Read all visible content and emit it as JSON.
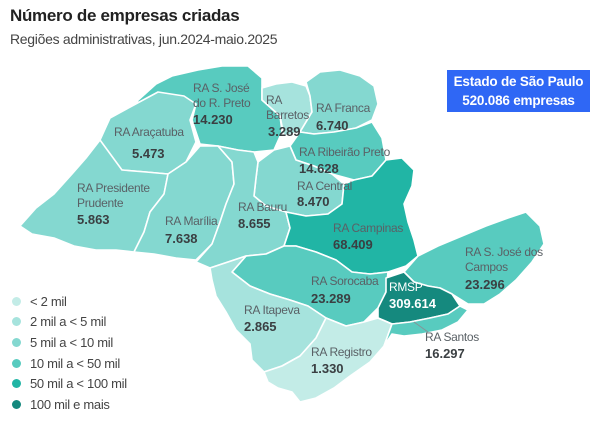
{
  "title": "Número de empresas criadas",
  "subtitle": "Regiões administrativas, jun.2024-maio.2025",
  "state_box": {
    "line1": "Estado de São Paulo",
    "line2": "520.086 empresas",
    "color": "#2f67f5"
  },
  "legend": [
    {
      "label": "< 2 mil",
      "color": "#c3ece7"
    },
    {
      "label": "2 mil a < 5 mil",
      "color": "#a6e3dd"
    },
    {
      "label": "5 mil a < 10 mil",
      "color": "#84d8d0"
    },
    {
      "label": "10 mil a < 50 mil",
      "color": "#58cbbf"
    },
    {
      "label": "50 mil a < 100 mil",
      "color": "#21b5a5"
    },
    {
      "label": "100 mil e mais",
      "color": "#15897e"
    }
  ],
  "regions": [
    {
      "id": "sjrp",
      "name_lines": [
        "RA S. José",
        "do R. Preto"
      ],
      "value": "14.230",
      "color": "#58cbbf"
    },
    {
      "id": "barretos",
      "name_lines": [
        "RA",
        "Barretos"
      ],
      "value": "3.289",
      "color": "#a6e3dd"
    },
    {
      "id": "franca",
      "name_lines": [
        "RA Franca"
      ],
      "value": "6.740",
      "color": "#84d8d0"
    },
    {
      "id": "aracatuba",
      "name_lines": [
        "RA Araçatuba"
      ],
      "value": "5.473",
      "color": "#84d8d0"
    },
    {
      "id": "ribeirao",
      "name_lines": [
        "RA Ribeirão Preto"
      ],
      "value": "14.628",
      "color": "#58cbbf"
    },
    {
      "id": "central",
      "name_lines": [
        "RA Central"
      ],
      "value": "8.470",
      "color": "#84d8d0"
    },
    {
      "id": "prudente",
      "name_lines": [
        "RA Presidente",
        "Prudente"
      ],
      "value": "5.863",
      "color": "#84d8d0"
    },
    {
      "id": "marilia",
      "name_lines": [
        "RA Marília"
      ],
      "value": "7.638",
      "color": "#84d8d0"
    },
    {
      "id": "bauru",
      "name_lines": [
        "RA Bauru"
      ],
      "value": "8.655",
      "color": "#84d8d0"
    },
    {
      "id": "campinas",
      "name_lines": [
        "RA Campinas"
      ],
      "value": "68.409",
      "color": "#21b5a5"
    },
    {
      "id": "sjcampos",
      "name_lines": [
        "RA S. José dos",
        "Campos"
      ],
      "value": "23.296",
      "color": "#58cbbf"
    },
    {
      "id": "sorocaba",
      "name_lines": [
        "RA Sorocaba"
      ],
      "value": "23.289",
      "color": "#58cbbf"
    },
    {
      "id": "rmsp",
      "name_lines": [
        "RMSP"
      ],
      "value": "309.614",
      "color": "#15897e"
    },
    {
      "id": "itapeva",
      "name_lines": [
        "RA Itapeva"
      ],
      "value": "2.865",
      "color": "#a6e3dd"
    },
    {
      "id": "registro",
      "name_lines": [
        "RA Registro"
      ],
      "value": "1.330",
      "color": "#c3ece7"
    },
    {
      "id": "santos",
      "name_lines": [
        "RA Santos"
      ],
      "value": "16.297",
      "color": "#58cbbf"
    }
  ]
}
